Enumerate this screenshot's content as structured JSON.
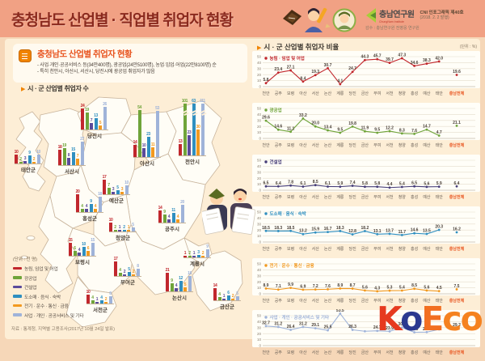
{
  "header": {
    "title": "충청남도 산업별 · 직업별 취업자 현황",
    "logo": {
      "org": "충남연구원",
      "org_en": "ChungNam Institute",
      "issue": "CNI 인포그래픽 제40호",
      "date": "(2018. 2. 2 발행)",
      "supervision": "감수 : 충남연구원 전병웅 연구원"
    }
  },
  "left": {
    "box_title": "충청남도 산업별 취업자 현황",
    "bullets": [
      "- 사업·개인·공공서비스 등(34만400명), 광공업(24만5100명), 농업·임업·어업(22만8100명) 순",
      "- 특히 천안시, 아산시, 서산시, 당진시에 광공업 취업자가 많음"
    ],
    "subtitle": "시 · 군 산업별 취업자 수",
    "legend_unit": "(단위 : 천 명)",
    "legend": [
      {
        "label": "농림, 임업 및 어업",
        "color": "#c1272d"
      },
      {
        "label": "광공업",
        "color": "#6fa43a"
      },
      {
        "label": "건설업",
        "color": "#5a4a9b"
      },
      {
        "label": "도소매 · 음식 · 숙박",
        "color": "#2f8fc0"
      },
      {
        "label": "전기 · 운수 · 통신 · 금융",
        "color": "#f2991f"
      },
      {
        "label": "사업 · 개인 · 공공서비스 및 기타",
        "color": "#9fb3d9"
      }
    ],
    "source": "자료 : 통계청, 지역별 고용조사(2017년 10월 24일 발표)"
  },
  "right": {
    "title": "시 · 군 산업별 취업자 비율",
    "unit": "(단위 : %)"
  },
  "koeco": {
    "letters": [
      {
        "ch": "K",
        "color": "#e63a1f"
      },
      {
        "ch": "o",
        "color": "#2b3990"
      },
      {
        "ch": "E",
        "color": "#f26f21"
      },
      {
        "ch": "c",
        "color": "#f58220"
      },
      {
        "ch": "o",
        "color": "#f58220"
      }
    ]
  },
  "chart_data": [
    {
      "type": "bar",
      "title": "시 · 군 산업별 취업자 수",
      "unit": "천 명",
      "series_labels": [
        "농림, 임업 및 어업",
        "광공업",
        "건설업",
        "도소매·음식·숙박",
        "전기·운수·통신·금융",
        "사업·개인·공공서비스 및 기타"
      ],
      "series_colors": [
        "#c1272d",
        "#6fa43a",
        "#5a4a9b",
        "#2f8fc0",
        "#f2991f",
        "#9fb3d9"
      ],
      "districts": [
        {
          "name": "태안군",
          "values": [
            10,
            2,
            3,
            9,
            2,
            10
          ],
          "x": 18,
          "base": 208
        },
        {
          "name": "서산시",
          "values": [
            18,
            19,
            8,
            15,
            7,
            27
          ],
          "x": 72,
          "base": 210
        },
        {
          "name": "당진시",
          "values": [
            24,
            19,
            7,
            13,
            5,
            26
          ],
          "x": 100,
          "base": 166
        },
        {
          "name": "아산시",
          "values": [
            14,
            54,
            10,
            23,
            11,
            53
          ],
          "x": 165,
          "base": 200
        },
        {
          "name": "천안시",
          "values": [
            13,
            101,
            23,
            63,
            30,
            111
          ],
          "x": 221,
          "base": 198
        },
        {
          "name": "예산군",
          "values": [
            17,
            7,
            3,
            5,
            3,
            10
          ],
          "x": 127,
          "base": 246
        },
        {
          "name": "홍성군",
          "values": [
            20,
            4,
            4,
            9,
            4,
            18
          ],
          "x": 94,
          "base": 268
        },
        {
          "name": "청양군",
          "values": [
            10,
            2,
            1,
            2,
            1,
            5
          ],
          "x": 135,
          "base": 292
        },
        {
          "name": "공주시",
          "values": [
            14,
            9,
            4,
            11,
            4,
            20
          ],
          "x": 196,
          "base": 281
        },
        {
          "name": "보령시",
          "values": [
            15,
            6,
            4,
            10,
            6,
            15
          ],
          "x": 85,
          "base": 322
        },
        {
          "name": "부여군",
          "values": [
            17,
            4,
            2,
            5,
            2,
            8
          ],
          "x": 141,
          "base": 347
        },
        {
          "name": "서천군",
          "values": [
            10,
            4,
            1,
            4,
            2,
            8
          ],
          "x": 107,
          "base": 381
        },
        {
          "name": "논산시",
          "values": [
            21,
            9,
            4,
            12,
            5,
            18
          ],
          "x": 205,
          "base": 366
        },
        {
          "name": "계룡시",
          "values": [
            1,
            2,
            1,
            3,
            2,
            9
          ],
          "x": 227,
          "base": 324
        },
        {
          "name": "금산군",
          "values": [
            14,
            4,
            1,
            6,
            2,
            5
          ],
          "x": 264,
          "base": 377
        }
      ]
    },
    {
      "type": "line",
      "name": "농림 · 임업 및 어업",
      "color": "#c1272d",
      "ylim": [
        0,
        50
      ],
      "categories": [
        "천안",
        "공주",
        "보령",
        "아산",
        "서산",
        "논산",
        "계룡",
        "당진",
        "금산",
        "부여",
        "서천",
        "청양",
        "홍성",
        "예산",
        "태안",
        "충남전체"
      ],
      "values": [
        5.8,
        23.4,
        27.1,
        8.4,
        19.3,
        30.7,
        4.1,
        24.7,
        44.3,
        45.7,
        39.7,
        47.3,
        34.6,
        38.3,
        42.0,
        19.6
      ]
    },
    {
      "type": "line",
      "name": "광공업",
      "color": "#6fa43a",
      "ylim": [
        0,
        50
      ],
      "categories": [
        "천안",
        "공주",
        "보령",
        "아산",
        "서산",
        "논산",
        "계룡",
        "당진",
        "금산",
        "부여",
        "서천",
        "청양",
        "홍성",
        "예산",
        "태안",
        "충남전체"
      ],
      "values": [
        29.6,
        14.6,
        11.1,
        33.2,
        20.0,
        13.4,
        9.5,
        19.8,
        11.9,
        9.5,
        12.2,
        8.3,
        7.6,
        14.7,
        4.7,
        21.1
      ]
    },
    {
      "type": "line",
      "name": "건설업",
      "color": "#453c78",
      "ylim": [
        0,
        50
      ],
      "categories": [
        "천안",
        "공주",
        "보령",
        "아산",
        "서산",
        "논산",
        "계룡",
        "당진",
        "금산",
        "부여",
        "서천",
        "청양",
        "홍성",
        "예산",
        "태안",
        "충남전체"
      ],
      "values": [
        6.5,
        6.4,
        7.8,
        6.1,
        8.5,
        6.1,
        5.9,
        7.4,
        5.8,
        5.8,
        4.4,
        5.4,
        6.5,
        5.6,
        5.9,
        6.4
      ]
    },
    {
      "type": "line",
      "name": "도소매 · 음식 · 숙박",
      "color": "#2f8fc0",
      "ylim": [
        0,
        50
      ],
      "categories": [
        "천안",
        "공주",
        "보령",
        "아산",
        "서산",
        "논산",
        "계룡",
        "당진",
        "금산",
        "부여",
        "서천",
        "청양",
        "홍성",
        "예산",
        "태안",
        "충남전체"
      ],
      "values": [
        18.5,
        18.3,
        18.5,
        13.2,
        15.9,
        16.7,
        18.3,
        12.8,
        18.2,
        13.1,
        13.7,
        11.7,
        14.6,
        13.5,
        20.3,
        16.2
      ]
    },
    {
      "type": "line",
      "name": "전기 · 운수 · 통신 · 금융",
      "color": "#f2991f",
      "ylim": [
        0,
        50
      ],
      "categories": [
        "천안",
        "공주",
        "보령",
        "아산",
        "서산",
        "논산",
        "계룡",
        "당진",
        "금산",
        "부여",
        "서천",
        "청양",
        "홍성",
        "예산",
        "태안",
        "충남전체"
      ],
      "values": [
        8.9,
        7.1,
        9.9,
        6.9,
        7.2,
        7.6,
        8.9,
        8.7,
        5.6,
        4.3,
        5.3,
        5.4,
        8.5,
        5.6,
        4.5,
        7.5
      ]
    },
    {
      "type": "line",
      "name": "사업 · 개인 · 공공서비스 및 기타",
      "color": "#9fb3d9",
      "ylim": [
        0,
        50
      ],
      "categories": [
        "천안",
        "공주",
        "보령",
        "아산",
        "서산",
        "논산",
        "계룡",
        "당진",
        "금산",
        "부여",
        "서천",
        "청양",
        "홍성",
        "예산",
        "태안",
        "충남전체"
      ],
      "values": [
        32.7,
        31.2,
        26.4,
        31.2,
        29.1,
        25.5,
        53.5,
        26.3,
        24.0,
        24.7,
        23.9,
        30.2,
        22.3,
        22.6,
        27.0,
        29.2
      ],
      "label_hidden": [
        8,
        14
      ]
    }
  ]
}
